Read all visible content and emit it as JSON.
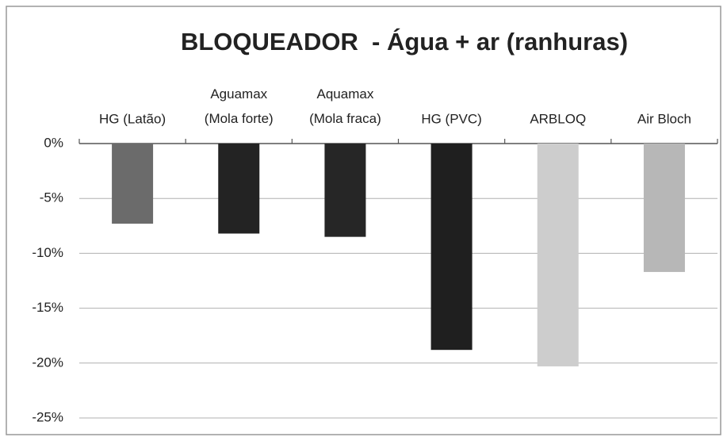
{
  "chart_data": {
    "type": "bar",
    "title": "BLOQUEADOR  - Água + ar (ranhuras)",
    "categories": [
      "HG (Latão)",
      "Aguamax (Mola forte)",
      "Aquamax (Mola fraca)",
      "HG (PVC)",
      "ARBLOQ",
      "Air Bloch"
    ],
    "values": [
      -7.3,
      -8.2,
      -8.5,
      -18.8,
      -20.3,
      -11.7
    ],
    "colors": [
      "#6b6b6b",
      "#232323",
      "#262626",
      "#1f1f1f",
      "#cdcdcd",
      "#b7b7b7"
    ],
    "ylim": [
      -25,
      0
    ],
    "yticks": [
      {
        "value": 0,
        "label": "0%"
      },
      {
        "value": -5,
        "label": "-5%"
      },
      {
        "value": -10,
        "label": "-10%"
      },
      {
        "value": -15,
        "label": "-15%"
      },
      {
        "value": -20,
        "label": "-20%"
      },
      {
        "value": -25,
        "label": "-25%"
      }
    ],
    "grid": true
  }
}
